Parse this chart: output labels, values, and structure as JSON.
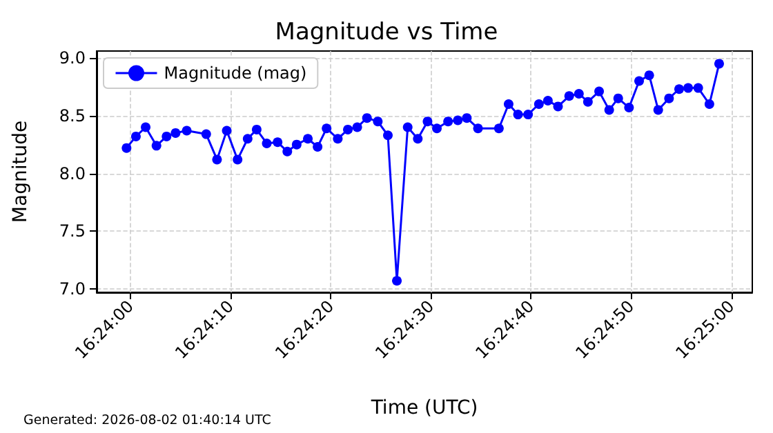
{
  "chart_data": {
    "type": "line",
    "title": "Magnitude vs Time",
    "xlabel": "Time (UTC)",
    "ylabel": "Magnitude",
    "annotations": [
      "Generated: 2026-08-02 01:40:14 UTC"
    ],
    "x": [
      16.39989,
      16.40015,
      16.40042,
      16.40072,
      16.401,
      16.40125,
      16.40156,
      16.4021,
      16.4024,
      16.40267,
      16.40297,
      16.40325,
      16.4035,
      16.40378,
      16.40408,
      16.40435,
      16.40461,
      16.40492,
      16.40519,
      16.40544,
      16.40575,
      16.40603,
      16.40629,
      16.40656,
      16.40686,
      16.40714,
      16.40739,
      16.40769,
      16.40797,
      16.40824,
      16.4085,
      16.40881,
      16.40908,
      16.40933,
      16.40964,
      16.41022,
      16.41049,
      16.41075,
      16.41103,
      16.41133,
      16.41158,
      16.41186,
      16.41217,
      16.41244,
      16.41269,
      16.413,
      16.41328,
      16.41353,
      16.41383,
      16.41411,
      16.41439,
      16.41464,
      16.41494,
      16.41522,
      16.41547,
      16.41575,
      16.41606,
      16.41633
    ],
    "series": [
      {
        "name": "Magnitude (mag)",
        "color": "#0000ff",
        "values": [
          8.22,
          8.32,
          8.4,
          8.24,
          8.32,
          8.35,
          8.37,
          8.34,
          8.12,
          8.37,
          8.12,
          8.3,
          8.38,
          8.26,
          8.27,
          8.19,
          8.25,
          8.3,
          8.23,
          8.39,
          8.3,
          8.38,
          8.4,
          8.48,
          8.45,
          8.33,
          7.07,
          8.4,
          8.3,
          8.45,
          8.39,
          8.45,
          8.46,
          8.48,
          8.39,
          8.39,
          8.6,
          8.51,
          8.51,
          8.6,
          8.63,
          8.58,
          8.67,
          8.69,
          8.62,
          8.71,
          8.55,
          8.65,
          8.57,
          8.8,
          8.85,
          8.55,
          8.65,
          8.73,
          8.74,
          8.74,
          8.6,
          8.95
        ]
      }
    ],
    "xlim": [
      16.39906,
      16.41725
    ],
    "xticks": [
      {
        "value": 16.4,
        "label": "16:24:00"
      },
      {
        "value": 16.402778,
        "label": "16:24:10"
      },
      {
        "value": 16.405556,
        "label": "16:24:20"
      },
      {
        "value": 16.408333,
        "label": "16:24:30"
      },
      {
        "value": 16.411111,
        "label": "16:24:40"
      },
      {
        "value": 16.413889,
        "label": "16:24:50"
      },
      {
        "value": 16.416667,
        "label": "16:25:00"
      }
    ],
    "ylim": [
      6.97,
      9.06
    ],
    "yticks": [
      {
        "value": 7,
        "label": "7.0"
      },
      {
        "value": 7.5,
        "label": "7.5"
      },
      {
        "value": 8,
        "label": "8.0"
      },
      {
        "value": 8.5,
        "label": "8.5"
      },
      {
        "value": 9,
        "label": "9.0"
      }
    ],
    "grid": true,
    "legend": "top left",
    "marker": "circle",
    "line_style": "solid"
  }
}
